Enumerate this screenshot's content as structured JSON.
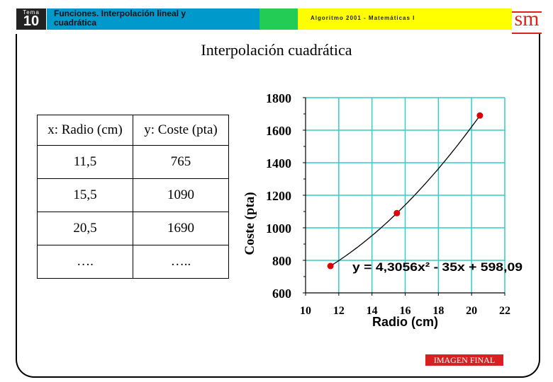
{
  "header": {
    "tema_label": "Tema",
    "tema_number": "10",
    "title": "Funciones. Interpolación lineal y cuadrática",
    "course": "Algoritmo 2001 - Matemáticas I",
    "logo_text": "sm"
  },
  "page_title": "Interpolación cuadrática",
  "table": {
    "headers": [
      "x: Radio (cm)",
      "y: Coste (pta)"
    ],
    "rows": [
      [
        "11,5",
        "765"
      ],
      [
        "15,5",
        "1090"
      ],
      [
        "20,5",
        "1690"
      ],
      [
        "….",
        "….."
      ]
    ]
  },
  "chart_data": {
    "type": "scatter",
    "xlabel": "Radio (cm)",
    "ylabel": "Coste (pta)",
    "xlim": [
      10,
      22
    ],
    "ylim": [
      600,
      1800
    ],
    "x_ticks": [
      10,
      12,
      14,
      16,
      18,
      20,
      22
    ],
    "y_ticks": [
      600,
      800,
      1000,
      1200,
      1400,
      1600,
      1800
    ],
    "grid": true,
    "points": [
      {
        "x": 11.5,
        "y": 765
      },
      {
        "x": 15.5,
        "y": 1090
      },
      {
        "x": 20.5,
        "y": 1690
      }
    ],
    "curve": {
      "a": 4.3056,
      "b": -35,
      "c": 598.09,
      "x_start": 11.5,
      "x_end": 20.5
    },
    "equation": "y = 4,3056x² - 35x + 598,09",
    "point_color": "#dd0000",
    "grid_color": "#33cccc"
  },
  "badge": "IMAGEN FINAL",
  "colors": {
    "title_bar": "#0099cc",
    "green_bar": "#22cc55",
    "yellow_bar": "#ffff00",
    "logo_red": "#e2211c"
  }
}
